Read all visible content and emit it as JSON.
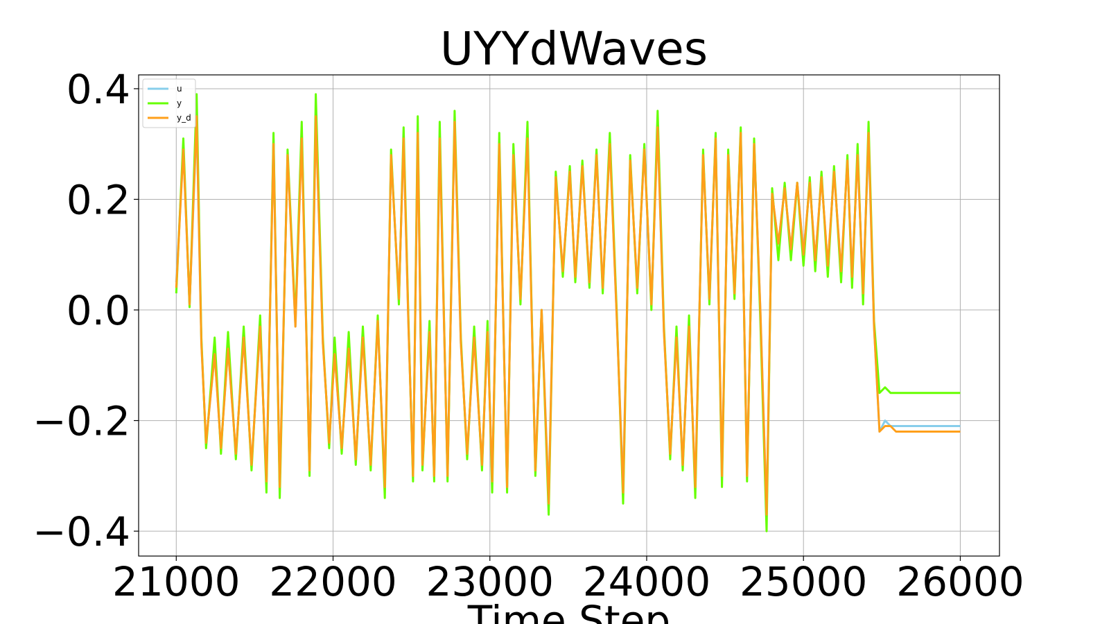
{
  "chart_data": {
    "type": "line",
    "title": "UYYdWaves",
    "xlabel": "Time Step",
    "ylabel": "",
    "xlim": [
      20760,
      26250
    ],
    "ylim": [
      -0.445,
      0.425
    ],
    "grid": true,
    "legend_position": "top-left",
    "xticks": [
      21000,
      22000,
      23000,
      24000,
      25000,
      26000
    ],
    "xtick_labels": [
      "21000",
      "22000",
      "23000",
      "24000",
      "25000",
      "26000"
    ],
    "yticks": [
      0.4,
      0.2,
      0.0,
      -0.2,
      -0.4
    ],
    "ytick_labels": [
      "0.4",
      "0.2",
      "0.0",
      "−0.2",
      "−0.4"
    ],
    "colors": {
      "u": "#87ceeb",
      "y": "#66ff00",
      "y_d": "#ff9f1a"
    },
    "series": [
      {
        "name": "u",
        "x": [
          21000,
          21045,
          21085,
          21130,
          21160,
          21190,
          21245,
          21285,
          21330,
          21380,
          21430,
          21480,
          21535,
          21575,
          21620,
          21660,
          21710,
          21760,
          21800,
          21850,
          21890,
          21935,
          21975,
          22010,
          22055,
          22100,
          22145,
          22190,
          22240,
          22285,
          22330,
          22370,
          22420,
          22450,
          22480,
          22510,
          22540,
          22570,
          22615,
          22645,
          22680,
          22730,
          22775,
          22815,
          22855,
          22900,
          22950,
          22985,
          23015,
          23060,
          23110,
          23150,
          23195,
          23240,
          23290,
          23330,
          23375,
          23420,
          23465,
          23510,
          23545,
          23590,
          23635,
          23680,
          23720,
          23765,
          23810,
          23850,
          23895,
          23940,
          23985,
          24030,
          24070,
          24110,
          24150,
          24190,
          24230,
          24270,
          24310,
          24360,
          24400,
          24440,
          24480,
          24520,
          24560,
          24600,
          24640,
          24685,
          24725,
          24765,
          24800,
          24840,
          24880,
          24920,
          24960,
          25000,
          25040,
          25075,
          25115,
          25155,
          25195,
          25240,
          25280,
          25310,
          25345,
          25380,
          25415,
          25450,
          25485,
          25520,
          25555,
          25590,
          25625,
          25660,
          25695,
          25730,
          25765,
          25800,
          25835,
          25870,
          25905,
          25945,
          25975,
          26000
        ],
        "values": [
          0.05,
          0.29,
          0.01,
          0.34,
          -0.06,
          -0.24,
          -0.08,
          -0.25,
          -0.07,
          -0.26,
          -0.05,
          -0.28,
          -0.03,
          -0.31,
          0.31,
          -0.32,
          0.28,
          -0.03,
          0.32,
          -0.29,
          0.35,
          -0.06,
          -0.24,
          -0.08,
          -0.25,
          -0.07,
          -0.27,
          -0.05,
          -0.28,
          -0.02,
          -0.32,
          0.28,
          0.02,
          0.31,
          -0.02,
          -0.3,
          0.32,
          -0.28,
          -0.04,
          -0.3,
          0.31,
          -0.3,
          0.34,
          -0.06,
          -0.26,
          -0.05,
          -0.28,
          -0.04,
          -0.31,
          0.3,
          -0.32,
          0.28,
          0.02,
          0.32,
          -0.29,
          0.0,
          -0.34,
          0.24,
          0.07,
          0.25,
          0.06,
          0.26,
          0.05,
          0.28,
          0.04,
          0.3,
          -0.02,
          -0.32,
          0.27,
          0.04,
          0.29,
          0.01,
          0.33,
          -0.04,
          -0.26,
          -0.05,
          -0.28,
          -0.03,
          -0.32,
          0.28,
          0.02,
          0.31,
          -0.3,
          0.28,
          0.03,
          0.32,
          -0.3,
          0.3,
          0.0,
          -0.37,
          0.21,
          0.12,
          0.22,
          0.11,
          0.23,
          0.1,
          0.23,
          0.09,
          0.24,
          0.08,
          0.25,
          0.07,
          0.27,
          0.06,
          0.28,
          0.03,
          0.31,
          -0.03,
          -0.22,
          -0.2,
          -0.21,
          -0.21,
          -0.21,
          -0.21,
          -0.21,
          -0.21,
          -0.21,
          -0.21,
          -0.21,
          -0.21,
          -0.21,
          -0.21,
          -0.21,
          -0.21
        ]
      },
      {
        "name": "y",
        "x": [
          21000,
          21045,
          21085,
          21130,
          21160,
          21190,
          21245,
          21285,
          21330,
          21380,
          21430,
          21480,
          21535,
          21575,
          21620,
          21660,
          21710,
          21760,
          21800,
          21850,
          21890,
          21935,
          21975,
          22010,
          22055,
          22100,
          22145,
          22190,
          22240,
          22285,
          22330,
          22370,
          22420,
          22450,
          22480,
          22510,
          22540,
          22570,
          22615,
          22645,
          22680,
          22730,
          22775,
          22815,
          22855,
          22900,
          22950,
          22985,
          23015,
          23060,
          23110,
          23150,
          23195,
          23240,
          23290,
          23330,
          23375,
          23420,
          23465,
          23510,
          23545,
          23590,
          23635,
          23680,
          23720,
          23765,
          23810,
          23850,
          23895,
          23940,
          23985,
          24030,
          24070,
          24110,
          24150,
          24190,
          24230,
          24270,
          24310,
          24360,
          24400,
          24440,
          24480,
          24520,
          24560,
          24600,
          24640,
          24685,
          24725,
          24765,
          24800,
          24840,
          24880,
          24920,
          24960,
          25000,
          25040,
          25075,
          25115,
          25155,
          25195,
          25240,
          25280,
          25310,
          25345,
          25380,
          25415,
          25450,
          25485,
          25520,
          25555,
          25590,
          25625,
          25660,
          25695,
          25730,
          25765,
          25800,
          25835,
          25870,
          25905,
          25945,
          25975,
          26000
        ],
        "values": [
          0.03,
          0.31,
          0.005,
          0.39,
          -0.05,
          -0.25,
          -0.05,
          -0.26,
          -0.04,
          -0.27,
          -0.03,
          -0.29,
          -0.01,
          -0.33,
          0.32,
          -0.34,
          0.29,
          -0.02,
          0.34,
          -0.3,
          0.39,
          -0.05,
          -0.25,
          -0.05,
          -0.26,
          -0.04,
          -0.28,
          -0.03,
          -0.29,
          -0.01,
          -0.34,
          0.29,
          0.01,
          0.33,
          -0.01,
          -0.31,
          0.35,
          -0.29,
          -0.02,
          -0.31,
          0.34,
          -0.31,
          0.36,
          -0.05,
          -0.27,
          -0.03,
          -0.29,
          -0.02,
          -0.33,
          0.32,
          -0.33,
          0.3,
          0.01,
          0.34,
          -0.3,
          0.0,
          -0.37,
          0.25,
          0.06,
          0.26,
          0.05,
          0.27,
          0.04,
          0.29,
          0.03,
          0.32,
          -0.01,
          -0.35,
          0.28,
          0.03,
          0.3,
          0.0,
          0.36,
          -0.03,
          -0.27,
          -0.03,
          -0.29,
          -0.01,
          -0.34,
          0.29,
          0.01,
          0.32,
          -0.32,
          0.29,
          0.02,
          0.33,
          -0.31,
          0.31,
          -0.02,
          -0.4,
          0.22,
          0.09,
          0.23,
          0.09,
          0.23,
          0.08,
          0.24,
          0.07,
          0.25,
          0.06,
          0.26,
          0.05,
          0.28,
          0.04,
          0.3,
          0.01,
          0.34,
          -0.02,
          -0.15,
          -0.14,
          -0.15,
          -0.15,
          -0.15,
          -0.15,
          -0.15,
          -0.15,
          -0.15,
          -0.15,
          -0.15,
          -0.15,
          -0.15,
          -0.15,
          -0.15,
          -0.15
        ]
      },
      {
        "name": "y_d",
        "x": [
          21000,
          21045,
          21085,
          21130,
          21160,
          21190,
          21245,
          21285,
          21330,
          21380,
          21430,
          21480,
          21535,
          21575,
          21620,
          21660,
          21710,
          21760,
          21800,
          21850,
          21890,
          21935,
          21975,
          22010,
          22055,
          22100,
          22145,
          22190,
          22240,
          22285,
          22330,
          22370,
          22420,
          22450,
          22480,
          22510,
          22540,
          22570,
          22615,
          22645,
          22680,
          22730,
          22775,
          22815,
          22855,
          22900,
          22950,
          22985,
          23015,
          23060,
          23110,
          23150,
          23195,
          23240,
          23290,
          23330,
          23375,
          23420,
          23465,
          23510,
          23545,
          23590,
          23635,
          23680,
          23720,
          23765,
          23810,
          23850,
          23895,
          23940,
          23985,
          24030,
          24070,
          24110,
          24150,
          24190,
          24230,
          24270,
          24310,
          24360,
          24400,
          24440,
          24480,
          24520,
          24560,
          24600,
          24640,
          24685,
          24725,
          24765,
          24800,
          24840,
          24880,
          24920,
          24960,
          25000,
          25040,
          25075,
          25115,
          25155,
          25195,
          25240,
          25280,
          25310,
          25345,
          25380,
          25415,
          25450,
          25485,
          25520,
          25555,
          25590,
          25625,
          25660,
          25695,
          25730,
          25765,
          25800,
          25835,
          25870,
          25905,
          25945,
          25975,
          26000
        ],
        "values": [
          0.04,
          0.29,
          0.01,
          0.35,
          -0.06,
          -0.24,
          -0.08,
          -0.25,
          -0.07,
          -0.26,
          -0.05,
          -0.28,
          -0.03,
          -0.31,
          0.3,
          -0.32,
          0.28,
          -0.03,
          0.31,
          -0.29,
          0.35,
          -0.06,
          -0.24,
          -0.08,
          -0.25,
          -0.07,
          -0.27,
          -0.05,
          -0.28,
          -0.02,
          -0.32,
          0.28,
          0.02,
          0.31,
          -0.02,
          -0.3,
          0.32,
          -0.28,
          -0.04,
          -0.3,
          0.31,
          -0.3,
          0.34,
          -0.06,
          -0.26,
          -0.05,
          -0.28,
          -0.04,
          -0.31,
          0.3,
          -0.32,
          0.28,
          0.02,
          0.31,
          -0.29,
          0.0,
          -0.35,
          0.24,
          0.07,
          0.25,
          0.06,
          0.26,
          0.05,
          0.28,
          0.04,
          0.3,
          -0.02,
          -0.33,
          0.27,
          0.04,
          0.29,
          0.01,
          0.33,
          -0.04,
          -0.26,
          -0.05,
          -0.28,
          -0.03,
          -0.32,
          0.28,
          0.02,
          0.31,
          -0.3,
          0.28,
          0.03,
          0.32,
          -0.3,
          0.3,
          0.0,
          -0.37,
          0.21,
          0.12,
          0.22,
          0.11,
          0.23,
          0.1,
          0.23,
          0.09,
          0.24,
          0.08,
          0.25,
          0.07,
          0.27,
          0.06,
          0.28,
          0.03,
          0.32,
          -0.03,
          -0.22,
          -0.21,
          -0.21,
          -0.22,
          -0.22,
          -0.22,
          -0.22,
          -0.22,
          -0.22,
          -0.22,
          -0.22,
          -0.22,
          -0.22,
          -0.22,
          -0.22,
          -0.22
        ]
      }
    ]
  }
}
